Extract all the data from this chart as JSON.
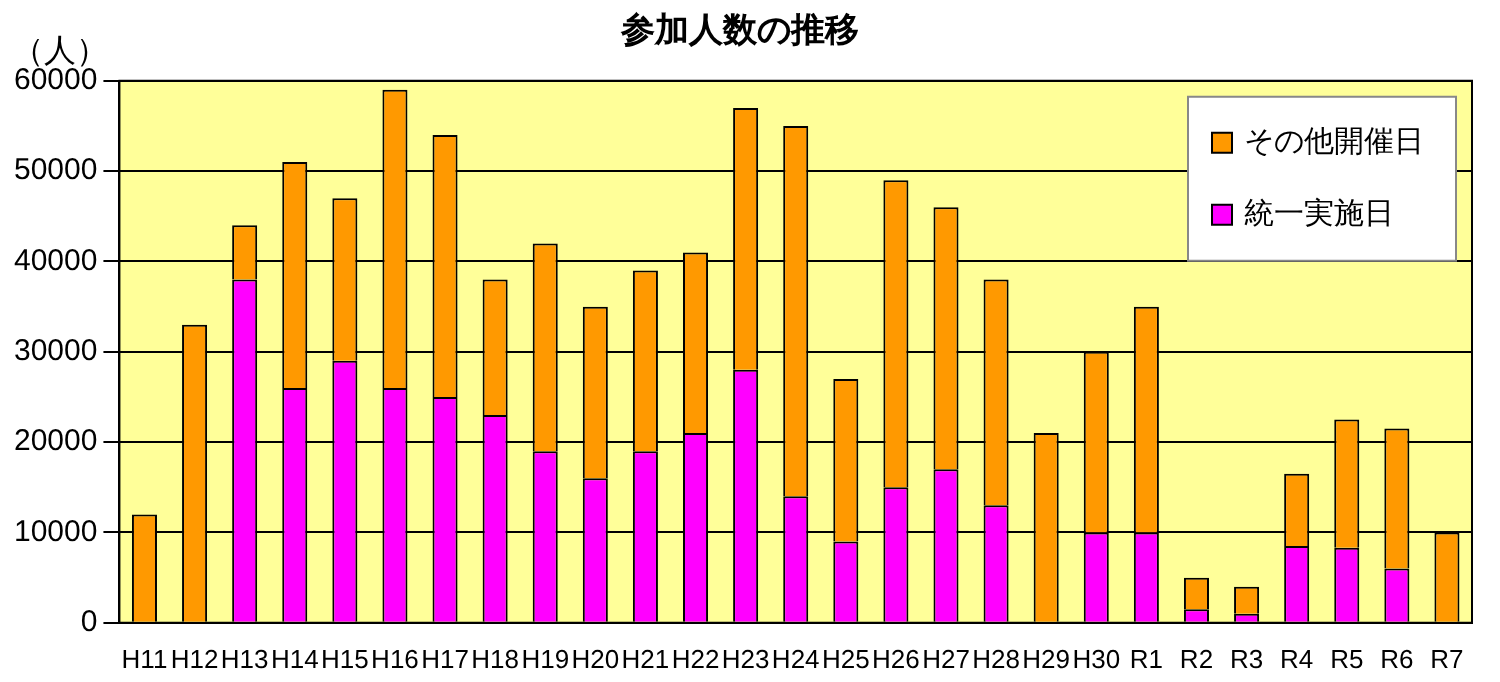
{
  "chart_data": {
    "type": "bar",
    "title": "参加人数の推移",
    "ylabel": "（人）",
    "categories": [
      "H11",
      "H12",
      "H13",
      "H14",
      "H15",
      "H16",
      "H17",
      "H18",
      "H19",
      "H20",
      "H21",
      "H22",
      "H23",
      "H24",
      "H25",
      "H26",
      "H27",
      "H28",
      "H29",
      "H30",
      "R1",
      "R2",
      "R3",
      "R4",
      "R5",
      "R6",
      "R7"
    ],
    "series": [
      {
        "name": "統一実施日",
        "color": "#ff00ff",
        "values": [
          0,
          0,
          38000,
          26000,
          29000,
          26000,
          25000,
          23000,
          19000,
          16000,
          19000,
          21000,
          28000,
          14000,
          9000,
          15000,
          17000,
          13000,
          0,
          10000,
          10000,
          1500,
          1000,
          8500,
          8300,
          6000,
          0
        ]
      },
      {
        "name": "その他開催日",
        "color": "#ff9900",
        "values": [
          12000,
          33000,
          6000,
          25000,
          18000,
          33000,
          29000,
          15000,
          23000,
          19000,
          20000,
          20000,
          29000,
          41000,
          18000,
          34000,
          29000,
          25000,
          21000,
          20000,
          25000,
          3500,
          3000,
          8000,
          14200,
          15500,
          10000
        ]
      }
    ],
    "stacked": true,
    "ylim": [
      0,
      60000
    ],
    "yticks": [
      0,
      10000,
      20000,
      30000,
      40000,
      50000,
      60000
    ],
    "grid": "y",
    "legend": "top right"
  }
}
